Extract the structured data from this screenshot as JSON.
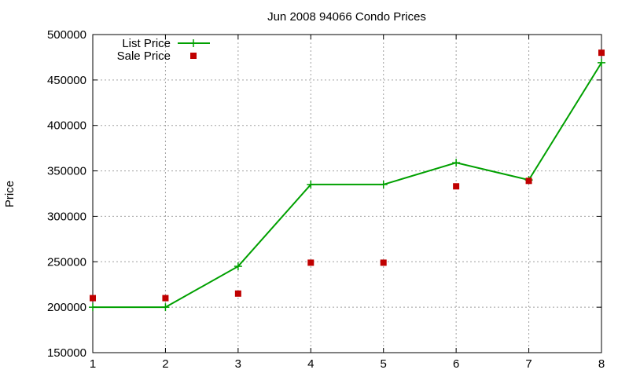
{
  "chart_data": {
    "type": "line",
    "title": "Jun 2008 94066 Condo Prices",
    "xlabel": "",
    "ylabel": "Price",
    "x": [
      1,
      2,
      3,
      4,
      5,
      6,
      7,
      8
    ],
    "xlim": [
      1,
      8
    ],
    "ylim": [
      150000,
      500000
    ],
    "xticks": [
      "1",
      "2",
      "3",
      "4",
      "5",
      "6",
      "7",
      "8"
    ],
    "yticks": [
      "150000",
      "200000",
      "250000",
      "300000",
      "350000",
      "400000",
      "450000",
      "500000"
    ],
    "grid": true,
    "legend_position": "top-left",
    "series": [
      {
        "name": "List Price",
        "style": "line-with-plus-markers",
        "color": "#00a000",
        "values": [
          200000,
          200000,
          245000,
          335000,
          335000,
          359000,
          340000,
          469000
        ]
      },
      {
        "name": "Sale Price",
        "style": "square-markers",
        "color": "#c00000",
        "values": [
          210000,
          210000,
          215000,
          249000,
          249000,
          333000,
          339000,
          480000
        ]
      }
    ]
  }
}
